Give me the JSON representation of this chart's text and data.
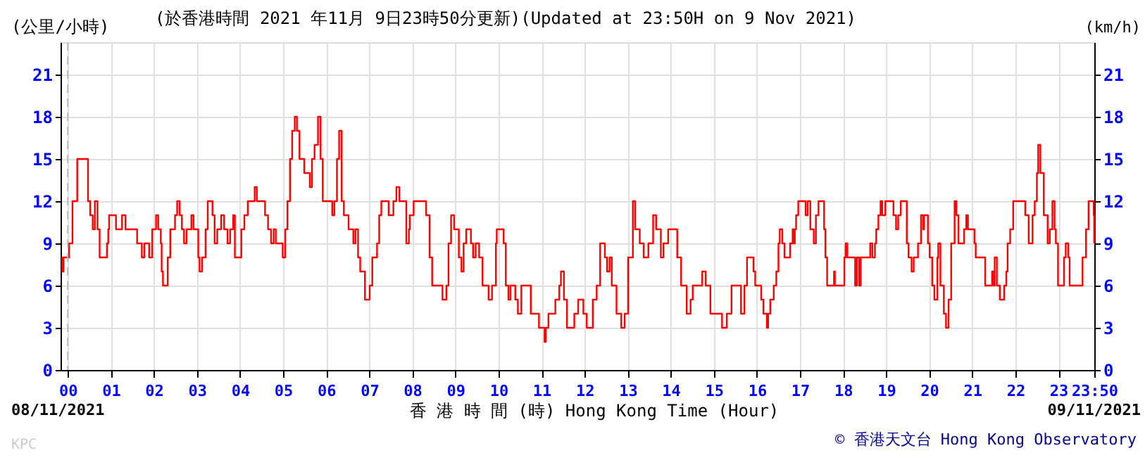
{
  "chart_data": {
    "type": "step",
    "title": "(於香港時間 2021 年11月 9日23時50分更新)(Updated at 23:50H on 9 Nov 2021)",
    "ylabel": "(公里/小時)",
    "y2label": "(km/h)",
    "xlabel": "香 港 時 間 (時) Hong Kong Time (Hour)",
    "annotations": [
      "08/11/2021",
      "09/11/2021",
      "© 香港天文台 Hong Kong Observatory",
      "KPC"
    ],
    "xlim": [
      -0.167,
      23.833
    ],
    "xticks": [
      {
        "value": 0,
        "label": "00"
      },
      {
        "value": 1,
        "label": "01"
      },
      {
        "value": 2,
        "label": "02"
      },
      {
        "value": 3,
        "label": "03"
      },
      {
        "value": 4,
        "label": "04"
      },
      {
        "value": 5,
        "label": "05"
      },
      {
        "value": 6,
        "label": "06"
      },
      {
        "value": 7,
        "label": "07"
      },
      {
        "value": 8,
        "label": "08"
      },
      {
        "value": 9,
        "label": "09"
      },
      10,
      11,
      12,
      13,
      14,
      15,
      16,
      17,
      18,
      19,
      20,
      21,
      22,
      23,
      {
        "value": 23.833,
        "label": "23:50"
      }
    ],
    "ylim": [
      0,
      23.3
    ],
    "yticks": [
      0,
      3,
      6,
      9,
      12,
      15,
      18,
      21
    ],
    "y2lim": [
      0,
      23.3
    ],
    "y2ticks": [
      0,
      3,
      6,
      9,
      12,
      15,
      18,
      21
    ],
    "grid": true,
    "marker": "none",
    "line_style": "solid",
    "ref_lines": [
      {
        "axis": "x",
        "value": 0,
        "color": "#bbbbbb",
        "line_style": "dashed"
      }
    ],
    "series": [
      {
        "color": "#ff0000",
        "x": [
          -0.15,
          -0.13,
          -0.1,
          0,
          0.03,
          0.11,
          0.22,
          0.36,
          0.47,
          0.52,
          0.58,
          0.63,
          0.69,
          0.74,
          0.91,
          0.94,
          0.96,
          1.05,
          1.12,
          1.16,
          1.26,
          1.29,
          1.34,
          1.4,
          1.61,
          1.72,
          1.78,
          1.89,
          1.96,
          2.05,
          2.1,
          2.16,
          2.18,
          2.21,
          2.29,
          2.32,
          2.38,
          2.49,
          2.54,
          2.6,
          2.65,
          2.7,
          2.76,
          2.87,
          2.92,
          3.03,
          3.06,
          3.12,
          3.2,
          3.25,
          3.3,
          3.36,
          3.41,
          3.47,
          3.56,
          3.63,
          3.71,
          3.77,
          3.84,
          3.88,
          3.99,
          4.03,
          4.1,
          4.18,
          4.29,
          4.34,
          4.39,
          4.54,
          4.58,
          4.65,
          4.72,
          4.78,
          4.83,
          4.97,
          4.99,
          5.05,
          5.1,
          5.16,
          5.21,
          5.27,
          5.32,
          5.38,
          5.49,
          5.62,
          5.67,
          5.73,
          5.81,
          5.87,
          5.92,
          6.11,
          6.14,
          6.19,
          6.25,
          6.3,
          6.36,
          6.41,
          6.52,
          6.63,
          6.68,
          6.74,
          6.79,
          6.9,
          7.01,
          7.07,
          7.18,
          7.23,
          7.28,
          7.45,
          7.56,
          7.63,
          7.7,
          7.86,
          7.92,
          7.94,
          8.03,
          8.27,
          8.32,
          8.4,
          8.46,
          8.65,
          8.7,
          8.79,
          8.84,
          8.9,
          8.97,
          9.08,
          9.14,
          9.19,
          9.25,
          9.36,
          9.41,
          9.47,
          9.55,
          9.63,
          9.77,
          9.85,
          9.94,
          9.96,
          10.12,
          10.17,
          10.23,
          10.28,
          10.39,
          10.45,
          10.53,
          10.75,
          10.94,
          11.07,
          11.1,
          11.16,
          11.32,
          11.41,
          11.45,
          11.52,
          11.59,
          11.76,
          11.85,
          11.97,
          12.05,
          12.19,
          12.28,
          12.36,
          12.47,
          12.52,
          12.58,
          12.63,
          12.74,
          12.85,
          12.93,
          13.01,
          13.12,
          13.17,
          13.28,
          13.37,
          13.48,
          13.59,
          13.66,
          13.77,
          13.83,
          13.94,
          14.15,
          14.24,
          14.37,
          14.46,
          14.51,
          14.73,
          14.81,
          14.92,
          15.19,
          15.3,
          15.41,
          15.63,
          15.71,
          15.77,
          15.92,
          15.96,
          16.1,
          16.15,
          16.23,
          16.26,
          16.31,
          16.39,
          16.45,
          16.5,
          16.53,
          16.59,
          16.64,
          16.77,
          16.83,
          16.86,
          16.88,
          16.91,
          16.96,
          17.13,
          17.18,
          17.24,
          17.32,
          17.37,
          17.43,
          17.56,
          17.59,
          17.63,
          17.79,
          17.81,
          18.03,
          18.06,
          18.1,
          18.28,
          18.32,
          18.37,
          18.41,
          18.63,
          18.68,
          18.74,
          18.77,
          18.82,
          18.87,
          18.91,
          18.98,
          19.17,
          19.23,
          19.28,
          19.34,
          19.48,
          19.52,
          19.59,
          19.64,
          19.74,
          19.81,
          19.86,
          19.88,
          19.97,
          20.01,
          20.07,
          20.12,
          20.19,
          20.21,
          20.26,
          20.34,
          20.39,
          20.45,
          20.51,
          20.59,
          20.63,
          20.68,
          20.81,
          20.86,
          20.9,
          21.05,
          21.08,
          21.3,
          21.46,
          21.5,
          21.52,
          21.57,
          21.64,
          21.74,
          21.79,
          21.82,
          21.88,
          21.95,
          22.23,
          22.31,
          22.4,
          22.45,
          22.5,
          22.53,
          22.58,
          22.66,
          22.75,
          22.8,
          22.86,
          22.91,
          22.94,
          22.99,
          23.13,
          23.17,
          23.23,
          23.26,
          23.56,
          23.64,
          23.7,
          23.82,
          23.83
        ],
        "values": [
          8,
          7,
          8,
          8,
          9,
          12,
          15,
          15,
          12,
          11,
          10,
          12,
          10,
          8,
          9,
          10,
          11,
          11,
          10,
          10,
          11,
          11,
          10,
          10,
          9,
          8,
          9,
          8,
          10,
          11,
          10,
          9,
          7,
          6,
          6,
          8,
          10,
          11,
          12,
          11,
          10,
          9,
          10,
          11,
          10,
          8,
          7,
          8,
          10,
          12,
          12,
          11,
          9,
          10,
          11,
          10,
          9,
          10,
          11,
          8,
          8,
          10,
          11,
          12,
          12,
          13,
          12,
          12,
          11,
          10,
          9,
          10,
          9,
          9,
          8,
          10,
          12,
          15,
          17,
          18,
          17,
          15,
          14,
          13,
          15,
          16,
          18,
          15,
          12,
          12,
          11,
          12,
          15,
          17,
          12,
          11,
          10,
          9,
          10,
          8,
          7,
          5,
          6,
          8,
          9,
          11,
          12,
          11,
          12,
          13,
          12,
          9,
          10,
          11,
          12,
          12,
          11,
          8,
          6,
          6,
          5,
          6,
          9,
          11,
          10,
          8,
          7,
          9,
          10,
          9,
          8,
          9,
          8,
          6,
          5,
          6,
          9,
          10,
          9,
          6,
          5,
          6,
          5,
          4,
          6,
          4,
          3,
          2,
          3,
          4,
          5,
          6,
          7,
          5,
          3,
          4,
          5,
          4,
          3,
          5,
          6,
          9,
          8,
          7,
          8,
          6,
          4,
          3,
          4,
          8,
          12,
          10,
          9,
          8,
          9,
          11,
          10,
          8,
          9,
          10,
          8,
          6,
          4,
          5,
          6,
          7,
          6,
          4,
          3,
          4,
          6,
          4,
          6,
          8,
          7,
          6,
          5,
          4,
          3,
          4,
          5,
          6,
          7,
          9,
          10,
          9,
          8,
          9,
          10,
          9,
          10,
          11,
          12,
          11,
          12,
          10,
          9,
          11,
          12,
          10,
          8,
          6,
          7,
          6,
          8,
          9,
          8,
          6,
          8,
          6,
          8,
          9,
          8,
          9,
          10,
          11,
          12,
          11,
          12,
          11,
          10,
          11,
          12,
          9,
          8,
          7,
          8,
          9,
          11,
          10,
          11,
          9,
          8,
          6,
          5,
          8,
          9,
          6,
          4,
          3,
          5,
          9,
          12,
          11,
          9,
          10,
          11,
          10,
          9,
          8,
          6,
          7,
          6,
          8,
          6,
          5,
          6,
          7,
          9,
          10,
          12,
          11,
          9,
          11,
          12,
          14,
          16,
          14,
          11,
          9,
          10,
          12,
          10,
          9,
          6,
          8,
          9,
          8,
          6,
          8,
          10,
          12,
          11,
          9
        ]
      }
    ]
  }
}
